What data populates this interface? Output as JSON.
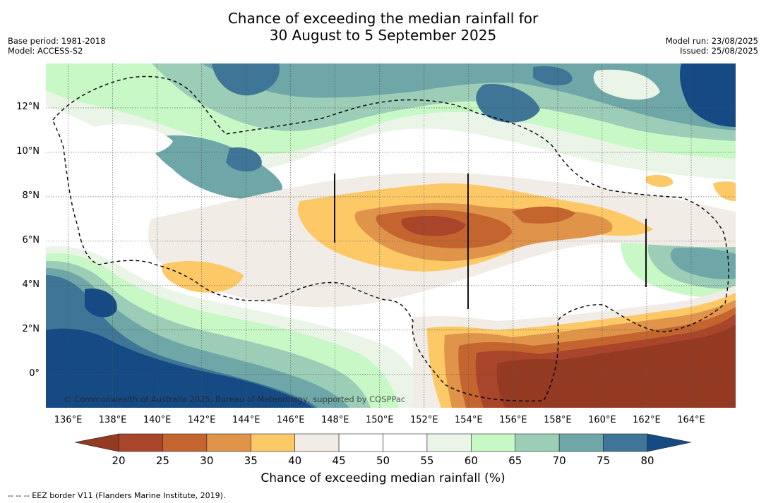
{
  "title_line1": "Chance of exceeding the median rainfall for",
  "title_line2": "30 August to 5 September 2025",
  "base_period": "Base period: 1981-2018",
  "model": "Model: ACCESS-S2",
  "model_run": "Model run: 23/08/2025",
  "issued": "Issued: 25/08/2025",
  "copyright": "© Commonwealth of Australia 2025, Bureau of Meteorology, supported by COSPPac",
  "legend_note": "-- -- -- EEZ border V11 (Flanders Marine Institute, 2019).",
  "colorbar_label": "Chance of exceeding median rainfall (%)",
  "longitude_labels": [
    "136°E",
    "138°E",
    "140°E",
    "142°E",
    "144°E",
    "146°E",
    "148°E",
    "150°E",
    "152°E",
    "154°E",
    "156°E",
    "158°E",
    "160°E",
    "162°E",
    "164°E"
  ],
  "longitude_values": [
    136,
    138,
    140,
    142,
    144,
    146,
    148,
    150,
    152,
    154,
    156,
    158,
    160,
    162,
    164
  ],
  "latitude_labels": [
    "12°N",
    "10°N",
    "8°N",
    "6°N",
    "4°N",
    "2°N",
    "0°"
  ],
  "latitude_values": [
    12,
    10,
    8,
    6,
    4,
    2,
    0
  ],
  "extent": {
    "lon_min": 135,
    "lon_max": 166,
    "lat_min": -1.5,
    "lat_max": 14
  },
  "colorbar_ticks": [
    "20",
    "25",
    "30",
    "35",
    "40",
    "45",
    "50",
    "55",
    "60",
    "65",
    "70",
    "75",
    "80"
  ],
  "colorbar_classes": [
    {
      "from": 20,
      "to": 25,
      "color": "#a8452a"
    },
    {
      "from": 25,
      "to": 30,
      "color": "#c4642f"
    },
    {
      "from": 30,
      "to": 35,
      "color": "#e0944a"
    },
    {
      "from": 35,
      "to": 40,
      "color": "#fdc866"
    },
    {
      "from": 40,
      "to": 45,
      "color": "#f1ece6"
    },
    {
      "from": 45,
      "to": 50,
      "color": "#ffffff"
    },
    {
      "from": 50,
      "to": 55,
      "color": "#ffffff"
    },
    {
      "from": 55,
      "to": 60,
      "color": "#eaf5e8"
    },
    {
      "from": 60,
      "to": 65,
      "color": "#c7f8c6"
    },
    {
      "from": 65,
      "to": 70,
      "color": "#9ccdb6"
    },
    {
      "from": 70,
      "to": 75,
      "color": "#6fa6a7"
    },
    {
      "from": 75,
      "to": 80,
      "color": "#3f7596"
    }
  ],
  "colorbar_under_color": "#953a22",
  "colorbar_over_color": "#154a84"
}
